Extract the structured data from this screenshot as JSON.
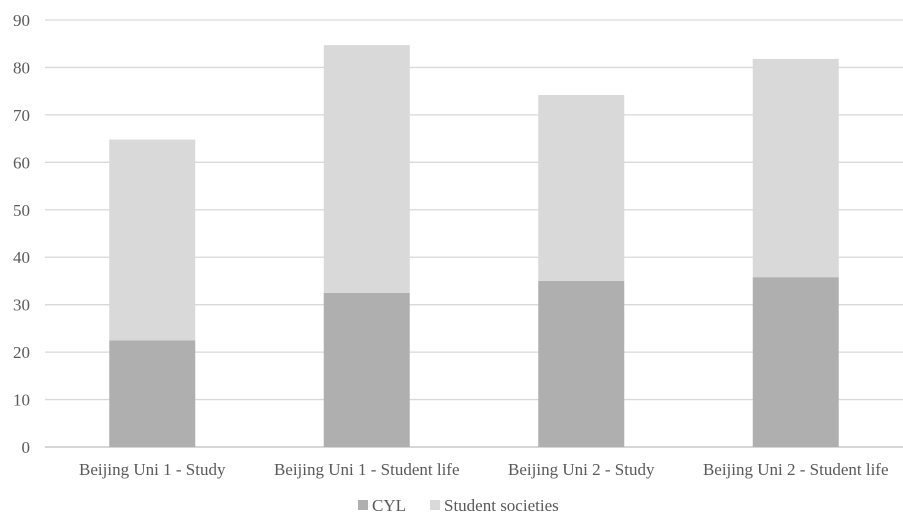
{
  "chart_data": {
    "type": "bar",
    "stacked": true,
    "categories": [
      "Beijing Uni 1 - Study",
      "Beijing Uni 1 - Student life",
      "Beijing Uni 2 - Study",
      "Beijing Uni 2 - Student life"
    ],
    "series": [
      {
        "name": "CYL",
        "values": [
          22.5,
          32.5,
          35,
          35.8
        ],
        "color": "#afafaf"
      },
      {
        "name": "Student societies",
        "values": [
          42.3,
          52.2,
          39.2,
          46
        ],
        "color": "#d9d9d9"
      }
    ],
    "ylim": [
      0,
      90
    ],
    "yticks": [
      0,
      10,
      20,
      30,
      40,
      50,
      60,
      70,
      80,
      90
    ],
    "grid": true,
    "legend_position": "bottom",
    "title": "",
    "xlabel": "",
    "ylabel": ""
  }
}
